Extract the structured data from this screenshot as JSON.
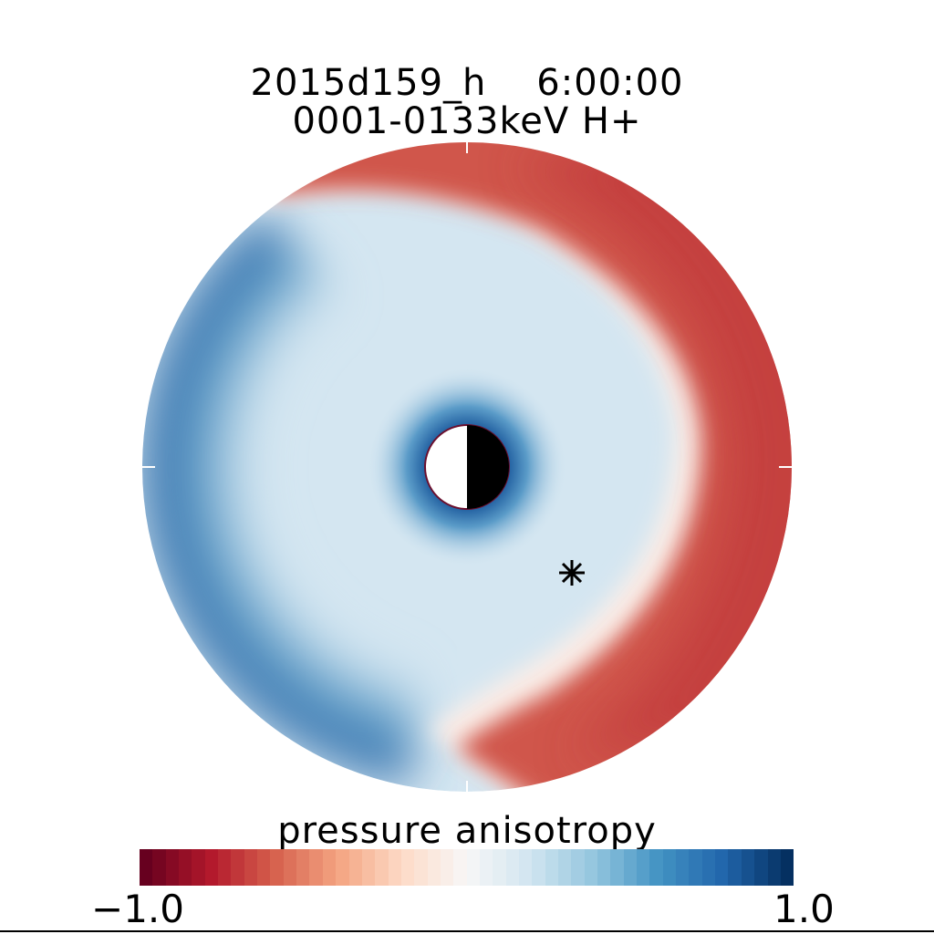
{
  "chart_data": {
    "type": "heatmap",
    "projection": "polar",
    "title_line1": "2015d159_h    6:00:00",
    "title_line2": "0001-0133keV H+",
    "colorbar_label": "pressure anisotropy",
    "colorbar_min_label": "−1.0",
    "colorbar_max_label": "1.0",
    "value_range": [
      -1.0,
      1.0
    ],
    "colormap": "RdBu",
    "colorbar_steps": 50,
    "marker": "asterisk",
    "regions": [
      {
        "name": "dawn/dusk outer red crescent (right side)",
        "approx_value": -0.6
      },
      {
        "name": "inner ring region",
        "approx_value": 0.2
      },
      {
        "name": "left outer rim",
        "approx_value": 0.8
      },
      {
        "name": "near-Earth ring",
        "approx_value": 0.8
      }
    ]
  },
  "colors": {
    "red": "#c8403a",
    "light_blue": "#d4e6f1",
    "dark_blue": "#1f5fa3"
  }
}
